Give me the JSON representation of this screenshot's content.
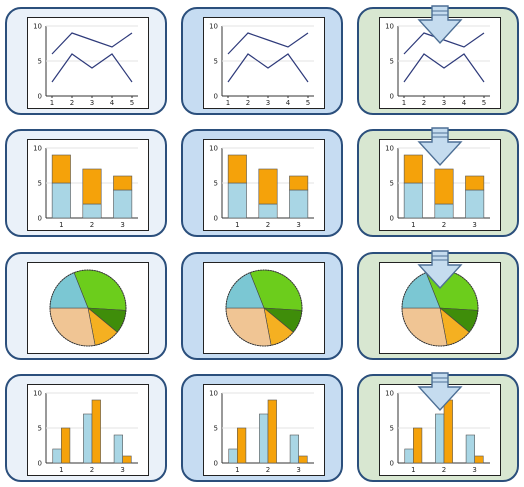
{
  "gallery": {
    "column_states": [
      "normal",
      "hover",
      "selected"
    ],
    "colors": {
      "border": "#2b4f7c",
      "normal_bg": "#eaf1f9",
      "hover_bg": "#c6dcf2",
      "selected_bg": "#d8e7d1",
      "line": "#2e3a7a",
      "orange": "#f5a20a",
      "lightblue": "#a9d6e5",
      "marker_fill": "#c5dcef"
    },
    "selected_marker_icon": "down-arrow-icon"
  },
  "chart_data": [
    {
      "type": "line",
      "x": [
        1,
        2,
        3,
        4,
        5
      ],
      "series": [
        {
          "values": [
            6,
            9,
            8,
            7,
            9
          ],
          "color": "#2e3a7a"
        },
        {
          "values": [
            2,
            6,
            4,
            6,
            2
          ],
          "color": "#2e3a7a"
        }
      ],
      "xticks": [
        "1",
        "2",
        "3",
        "4",
        "5"
      ],
      "yticks": [
        "0",
        "5",
        "10"
      ],
      "ylim": [
        0,
        10
      ]
    },
    {
      "type": "bar",
      "stacked": true,
      "categories": [
        "1",
        "2",
        "3"
      ],
      "series": [
        {
          "values": [
            5,
            2,
            4
          ],
          "color": "#a9d6e5"
        },
        {
          "values": [
            4,
            5,
            2
          ],
          "color": "#f5a20a"
        }
      ],
      "yticks": [
        "0",
        "5",
        "10"
      ],
      "ylim": [
        0,
        10
      ]
    },
    {
      "type": "pie",
      "slices": [
        {
          "value": 32,
          "color": "#6ccd1c"
        },
        {
          "value": 10,
          "color": "#3f8d0a"
        },
        {
          "value": 11,
          "color": "#f5b021"
        },
        {
          "value": 28,
          "color": "#f0c594"
        },
        {
          "value": 19,
          "color": "#7bc7d3"
        }
      ]
    },
    {
      "type": "bar",
      "categories": [
        "1",
        "2",
        "3"
      ],
      "series": [
        {
          "values": [
            2,
            7,
            4
          ],
          "color": "#a9d6e5"
        },
        {
          "values": [
            5,
            9,
            1
          ],
          "color": "#f5a20a"
        }
      ],
      "yticks": [
        "0",
        "5",
        "10"
      ],
      "ylim": [
        0,
        10
      ]
    }
  ]
}
